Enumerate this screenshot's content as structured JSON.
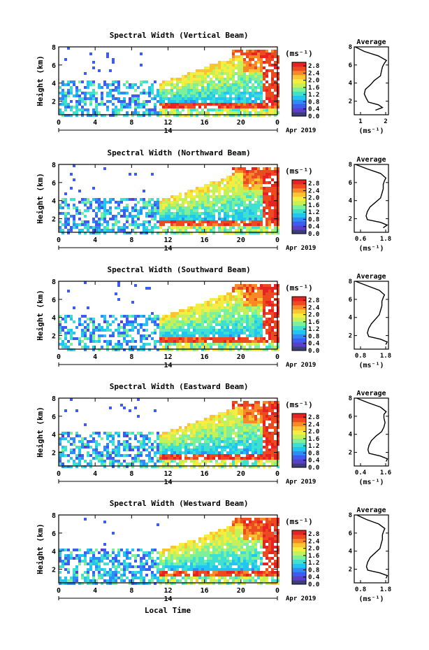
{
  "figure": {
    "x_axis_label": "Local Time",
    "colorbar_unit": "(ms⁻¹)",
    "colorbar_ticks": [
      "0.0",
      "0.4",
      "0.8",
      "1.2",
      "1.6",
      "2.0",
      "2.4",
      "2.8"
    ],
    "colorbar_range": [
      0.0,
      3.0
    ],
    "colormap": [
      "#3d3d7a",
      "#5a3fc8",
      "#3f5cf0",
      "#2f8cf5",
      "#22c4f0",
      "#3fe0d0",
      "#7ef09a",
      "#c4f05a",
      "#f5ee40",
      "#f9c530",
      "#f78a26",
      "#ee4a22",
      "#e62222"
    ],
    "x_ticks": [
      "0",
      "4",
      "8",
      "12",
      "16",
      "20",
      "0"
    ],
    "date_day": "14",
    "date_label": "Apr 2019",
    "y_axis_label": "Height (km)",
    "y_ticks": [
      "2",
      "4",
      "6",
      "8"
    ],
    "avg_title": "Average",
    "avg_xlabel": "(ms⁻¹)"
  },
  "chart_data": [
    {
      "type": "heatmap",
      "title": "Spectral Width (Vertical Beam)",
      "xlabel": "",
      "ylabel": "Height (km)",
      "xlim": [
        0,
        24
      ],
      "ylim": [
        0.5,
        8
      ],
      "z_range": [
        0.0,
        3.0
      ],
      "profile": {
        "type": "line",
        "title": "Average",
        "xlabel": "(ms⁻¹)",
        "xlim": [
          0.5,
          2.2
        ],
        "x_ticks": [
          "1",
          "2"
        ],
        "x": [
          1.55,
          1.9,
          1.7,
          1.2,
          1.1,
          1.0,
          1.05,
          1.3,
          1.5,
          1.8,
          1.85,
          1.9,
          2.0,
          2.1,
          1.7,
          1.0,
          0.55
        ],
        "y": [
          1.0,
          1.3,
          1.6,
          1.9,
          2.3,
          2.8,
          3.3,
          3.8,
          4.3,
          4.8,
          5.3,
          5.8,
          6.2,
          6.5,
          7.0,
          7.5,
          8.0
        ]
      }
    },
    {
      "type": "heatmap",
      "title": "Spectral Width (Northward Beam)",
      "xlabel": "",
      "ylabel": "Height (km)",
      "xlim": [
        0,
        24
      ],
      "ylim": [
        0.5,
        8
      ],
      "z_range": [
        0.0,
        3.0
      ],
      "profile": {
        "type": "line",
        "title": "Average",
        "xlabel": "(ms⁻¹)",
        "xlim": [
          0.5,
          1.8
        ],
        "x_ticks": [
          "0.6",
          "1.8"
        ],
        "x": [
          1.6,
          1.75,
          1.5,
          1.0,
          0.95,
          1.0,
          1.1,
          1.3,
          1.5,
          1.55,
          1.6,
          1.6,
          1.65,
          1.7,
          1.5,
          1.0,
          0.55
        ],
        "y": [
          1.0,
          1.3,
          1.6,
          1.9,
          2.3,
          2.8,
          3.3,
          3.8,
          4.3,
          4.8,
          5.3,
          5.8,
          6.2,
          6.5,
          7.0,
          7.5,
          8.0
        ]
      }
    },
    {
      "type": "heatmap",
      "title": "Spectral Width (Southward Beam)",
      "xlabel": "",
      "ylabel": "Height (km)",
      "xlim": [
        0,
        24
      ],
      "ylim": [
        0.5,
        8
      ],
      "z_range": [
        0.0,
        3.0
      ],
      "profile": {
        "type": "line",
        "title": "Average",
        "xlabel": "(ms⁻¹)",
        "xlim": [
          0.5,
          1.8
        ],
        "x_ticks": [
          "0.8",
          "1.8"
        ],
        "x": [
          1.7,
          1.75,
          1.5,
          1.05,
          1.0,
          1.05,
          1.15,
          1.3,
          1.45,
          1.5,
          1.55,
          1.55,
          1.6,
          1.65,
          1.45,
          1.0,
          0.55
        ],
        "y": [
          1.0,
          1.3,
          1.6,
          1.9,
          2.3,
          2.8,
          3.3,
          3.8,
          4.3,
          4.8,
          5.3,
          5.8,
          6.2,
          6.5,
          7.0,
          7.5,
          8.0
        ]
      }
    },
    {
      "type": "heatmap",
      "title": "Spectral Width (Eastward Beam)",
      "xlabel": "",
      "ylabel": "Height (km)",
      "xlim": [
        0,
        24
      ],
      "ylim": [
        0.5,
        8
      ],
      "z_range": [
        0.0,
        3.0
      ],
      "profile": {
        "type": "line",
        "title": "Average",
        "xlabel": "(ms⁻¹)",
        "xlim": [
          0.3,
          1.8
        ],
        "x_ticks": [
          "0.4",
          "1.6"
        ],
        "x": [
          1.7,
          1.75,
          1.45,
          0.95,
          0.9,
          0.95,
          1.05,
          1.25,
          1.5,
          1.6,
          1.65,
          1.6,
          1.6,
          1.7,
          1.45,
          0.9,
          0.4
        ],
        "y": [
          1.0,
          1.3,
          1.6,
          1.9,
          2.3,
          2.8,
          3.3,
          3.8,
          4.3,
          4.8,
          5.3,
          5.8,
          6.2,
          6.5,
          7.0,
          7.5,
          8.0
        ]
      }
    },
    {
      "type": "heatmap",
      "title": "Spectral Width (Westward Beam)",
      "xlabel": "",
      "ylabel": "Height (km)",
      "xlim": [
        0,
        24
      ],
      "ylim": [
        0.5,
        8
      ],
      "z_range": [
        0.0,
        3.0
      ],
      "profile": {
        "type": "line",
        "title": "Average",
        "xlabel": "(ms⁻¹)",
        "xlim": [
          0.4,
          1.8
        ],
        "x_ticks": [
          "0.8",
          "1.8"
        ],
        "x": [
          1.7,
          1.75,
          1.45,
          0.95,
          0.9,
          0.95,
          1.05,
          1.25,
          1.45,
          1.5,
          1.55,
          1.55,
          1.6,
          1.65,
          1.4,
          0.9,
          0.5
        ],
        "y": [
          1.0,
          1.3,
          1.6,
          1.9,
          2.3,
          2.8,
          3.3,
          3.8,
          4.3,
          4.8,
          5.3,
          5.8,
          6.2,
          6.5,
          7.0,
          7.5,
          8.0
        ]
      }
    }
  ]
}
